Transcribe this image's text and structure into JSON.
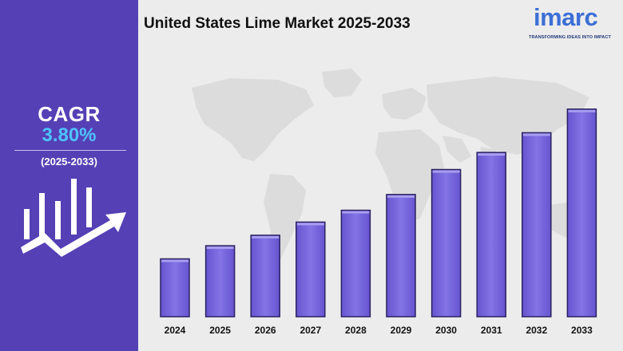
{
  "title": "United States Lime Market 2025-2033",
  "logo": {
    "word": "imarc",
    "tagline": "TRANSFORMING IDEAS INTO IMPACT"
  },
  "cagr": {
    "label": "CAGR",
    "value": "3.80%",
    "period": "(2025-2033)"
  },
  "colors": {
    "sidebar": "#5540b5",
    "bar_fill": "#7a68e0",
    "bar_edge": "#2a2161",
    "cagr_value": "#4fc3ff",
    "logo": "#3c6fd6"
  },
  "icons": {
    "sidebar": "growth-chart-arrow-icon",
    "background": "world-map"
  },
  "chart_data": {
    "type": "bar",
    "categories": [
      "2024",
      "2025",
      "2026",
      "2027",
      "2028",
      "2029",
      "2030",
      "2031",
      "2032",
      "2033"
    ],
    "values": [
      44,
      54,
      62,
      72,
      81,
      93,
      112,
      125,
      140,
      158
    ],
    "ylim": [
      0,
      170
    ],
    "grid": false,
    "legend": "none"
  }
}
